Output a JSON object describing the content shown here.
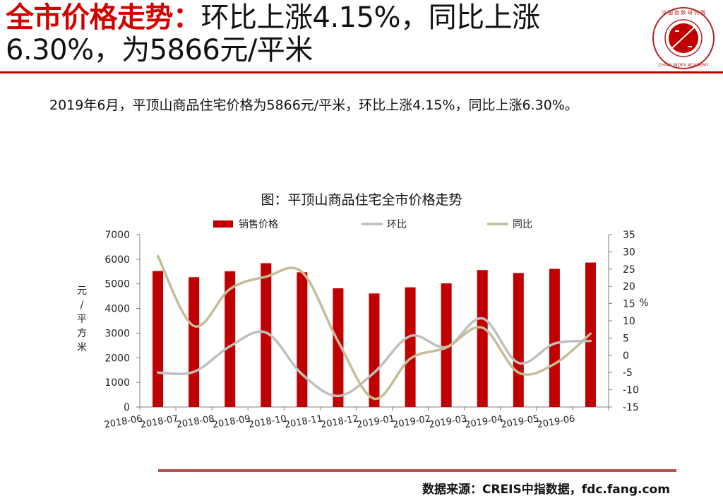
{
  "header": {
    "title_highlight": "全市价格走势：",
    "title_rest": "环比上涨4.15%，同比上涨6.30%，为5866元/平米"
  },
  "logo": {
    "text": "中国指数研究院 CHINA INDEX ACADEMY"
  },
  "summary": "2019年6月，平顶山商品住宅价格为5866元/平米，环比上涨4.15%，同比上涨6.30%。",
  "chart_data": {
    "type": "bar",
    "title": "图：平顶山商品住宅全市价格走势",
    "categories": [
      "2018-06",
      "2018-07",
      "2018-08",
      "2018-09",
      "2018-10",
      "2018-11",
      "2018-12",
      "2019-01",
      "2019-02",
      "2019-03",
      "2019-04",
      "2019-05",
      "2019-06"
    ],
    "series": [
      {
        "name": "销售价格",
        "type": "bar",
        "axis": "left",
        "color": "#c00000",
        "values": [
          5520,
          5270,
          5510,
          5840,
          5470,
          4820,
          4610,
          4860,
          5020,
          5560,
          5440,
          5610,
          5866
        ]
      },
      {
        "name": "环比",
        "type": "line",
        "axis": "right",
        "color": "#bfbfbf",
        "values": [
          -5,
          -4.8,
          2.6,
          6.6,
          -5.5,
          -11.8,
          -5,
          5.6,
          2.4,
          10.7,
          -2.2,
          3.4,
          4.15
        ]
      },
      {
        "name": "同比",
        "type": "line",
        "axis": "right",
        "color": "#c4bd97",
        "values": [
          28.8,
          8.5,
          19.2,
          22.8,
          24.1,
          4.0,
          -12.6,
          -1.0,
          2.2,
          8.0,
          -5.0,
          -2.5,
          6.3
        ]
      }
    ],
    "y_left": {
      "label": "元/平方米",
      "range": [
        0,
        7000
      ],
      "ticks": [
        0,
        1000,
        2000,
        3000,
        4000,
        5000,
        6000,
        7000
      ]
    },
    "y_right": {
      "label": "%",
      "range": [
        -15,
        35
      ],
      "ticks": [
        -15,
        -10,
        -5,
        0,
        5,
        10,
        15,
        20,
        25,
        30,
        35
      ]
    },
    "legend": "top",
    "grid": false
  },
  "source": "数据来源：CREIS中指数据，fdc.fang.com"
}
